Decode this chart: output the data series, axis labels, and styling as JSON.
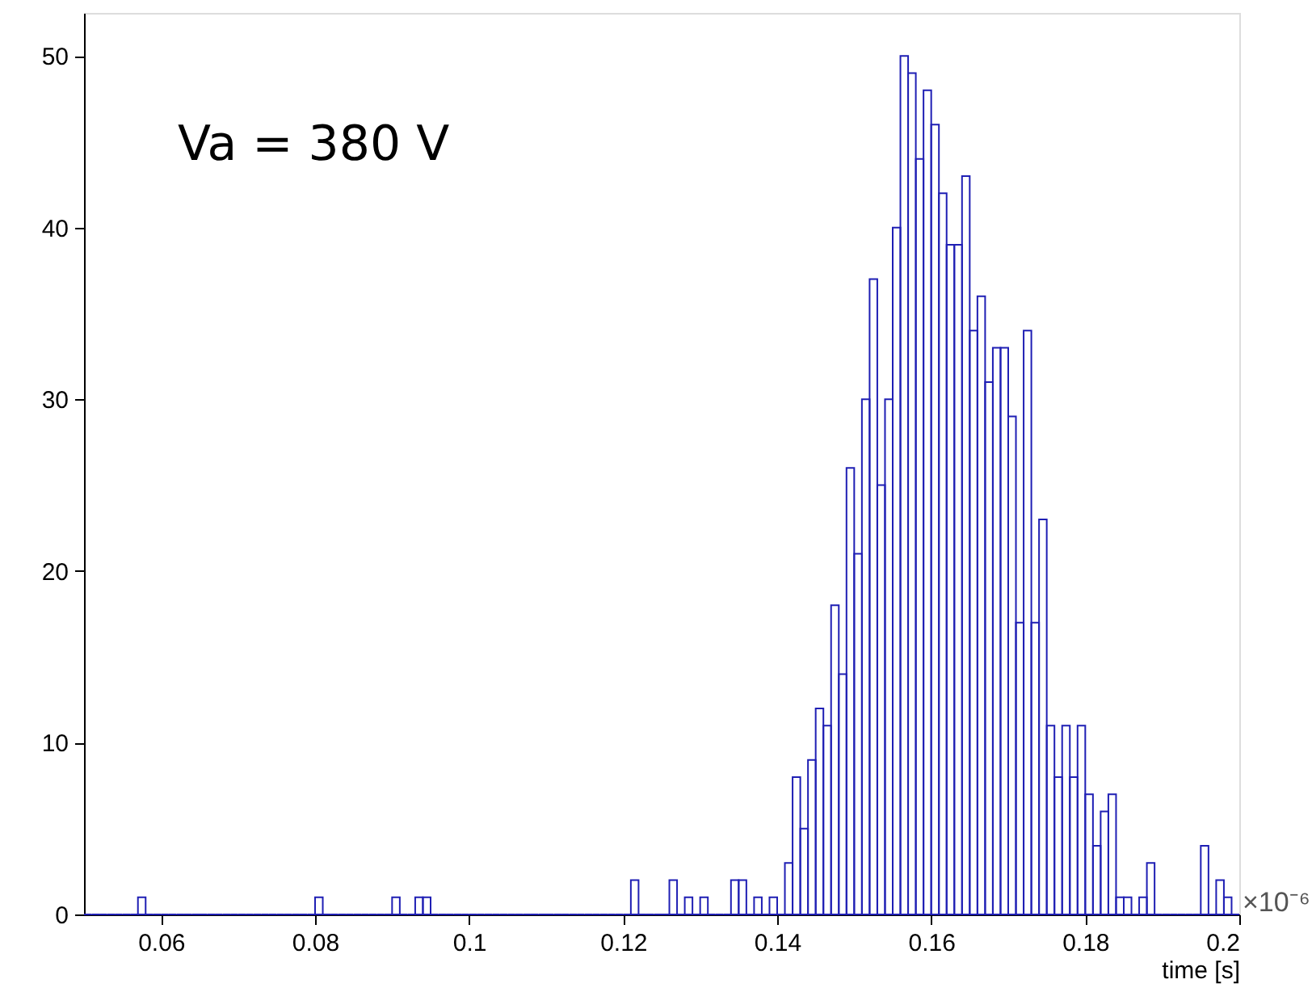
{
  "chart_data": {
    "type": "histogram",
    "xlabel": "time [s]",
    "annotations": [
      "Va = 380 V",
      "×10⁻⁶"
    ],
    "bins": [
      0.05,
      0.051,
      0.052,
      0.053,
      0.054,
      0.055,
      0.056,
      0.057,
      0.058,
      0.059,
      0.06,
      0.061,
      0.062,
      0.063,
      0.064,
      0.065,
      0.066,
      0.067,
      0.068,
      0.069,
      0.07,
      0.071,
      0.072,
      0.073,
      0.074,
      0.075,
      0.076,
      0.077,
      0.078,
      0.079,
      0.08,
      0.081,
      0.082,
      0.083,
      0.084,
      0.085,
      0.086,
      0.087,
      0.088,
      0.089,
      0.09,
      0.091,
      0.092,
      0.093,
      0.094,
      0.095,
      0.096,
      0.097,
      0.098,
      0.099,
      0.1,
      0.101,
      0.102,
      0.103,
      0.104,
      0.105,
      0.106,
      0.107,
      0.108,
      0.109,
      0.11,
      0.111,
      0.112,
      0.113,
      0.114,
      0.115,
      0.116,
      0.117,
      0.118,
      0.119,
      0.12,
      0.121,
      0.122,
      0.123,
      0.124,
      0.125,
      0.126,
      0.127,
      0.128,
      0.129,
      0.13,
      0.131,
      0.132,
      0.133,
      0.134,
      0.135,
      0.136,
      0.137,
      0.138,
      0.139,
      0.14,
      0.141,
      0.142,
      0.143,
      0.144,
      0.145,
      0.146,
      0.147,
      0.148,
      0.149,
      0.15,
      0.151,
      0.152,
      0.153,
      0.154,
      0.155,
      0.156,
      0.157,
      0.158,
      0.159,
      0.16,
      0.161,
      0.162,
      0.163,
      0.164,
      0.165,
      0.166,
      0.167,
      0.168,
      0.169,
      0.17,
      0.171,
      0.172,
      0.173,
      0.174,
      0.175,
      0.176,
      0.177,
      0.178,
      0.179,
      0.18,
      0.181,
      0.182,
      0.183,
      0.184,
      0.185,
      0.186,
      0.187,
      0.188,
      0.189,
      0.19,
      0.191,
      0.192,
      0.193,
      0.194,
      0.195,
      0.196,
      0.197,
      0.198,
      0.199,
      0.2
    ],
    "values": [
      0,
      0,
      0,
      0,
      0,
      0,
      0,
      1,
      0,
      0,
      0,
      0,
      0,
      0,
      0,
      0,
      0,
      0,
      0,
      0,
      0,
      0,
      0,
      0,
      0,
      0,
      0,
      0,
      0,
      0,
      1,
      0,
      0,
      0,
      0,
      0,
      0,
      0,
      0,
      0,
      1,
      0,
      0,
      1,
      1,
      0,
      0,
      0,
      0,
      0,
      0,
      0,
      0,
      0,
      0,
      0,
      0,
      0,
      0,
      0,
      0,
      0,
      0,
      0,
      0,
      0,
      0,
      0,
      0,
      0,
      0,
      2,
      0,
      0,
      0,
      0,
      2,
      0,
      1,
      0,
      1,
      0,
      0,
      0,
      2,
      2,
      0,
      1,
      0,
      1,
      0,
      3,
      8,
      5,
      9,
      12,
      11,
      18,
      14,
      26,
      21,
      30,
      37,
      25,
      30,
      40,
      50,
      49,
      44,
      48,
      46,
      42,
      39,
      39,
      43,
      34,
      36,
      31,
      33,
      33,
      29,
      17,
      34,
      17,
      23,
      11,
      8,
      11,
      8,
      11,
      7,
      4,
      6,
      7,
      1,
      1,
      0,
      1,
      3,
      0,
      0,
      0,
      0,
      0,
      0,
      4,
      0,
      2,
      1,
      0
    ],
    "color": "#1f1fb4",
    "xlim": [
      0.05,
      0.2
    ],
    "xticks": [
      0.06,
      0.08,
      0.1,
      0.12,
      0.14,
      0.16,
      0.18,
      0.2
    ],
    "ylim": [
      0,
      52.5
    ],
    "yticks": [
      0,
      10,
      20,
      30,
      40,
      50
    ],
    "grid": false
  }
}
